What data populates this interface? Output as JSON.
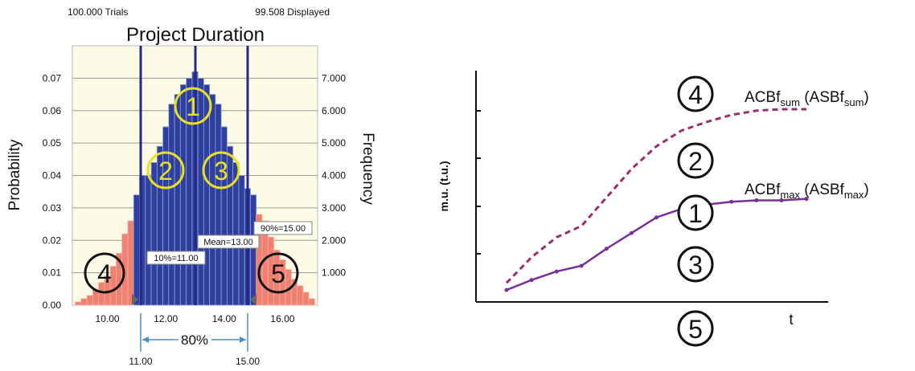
{
  "chart_data": [
    {
      "type": "bar",
      "title": "Project Duration",
      "header_left": "100.000 Trials",
      "header_right": "99.508 Displayed",
      "ylabel": "Probability",
      "ylabel_right": "Frequency",
      "ylim": [
        0,
        0.08
      ],
      "yticks": [
        "0.00",
        "0.01",
        "0.02",
        "0.03",
        "0.04",
        "0.05",
        "0.06",
        "0.07"
      ],
      "yticks_right": [
        "1.000",
        "2.000",
        "3.000",
        "4.000",
        "5.000",
        "6.000",
        "7.000"
      ],
      "xlim": [
        8.8,
        17.2
      ],
      "xticks": [
        "10.00",
        "12.00",
        "14.00",
        "16.00"
      ],
      "bin_width": 0.2,
      "bins_start": 8.9,
      "bin_centers": [
        9.0,
        9.2,
        9.4,
        9.6,
        9.8,
        10.0,
        10.2,
        10.4,
        10.6,
        10.8,
        11.0,
        11.2,
        11.4,
        11.6,
        11.8,
        12.0,
        12.2,
        12.4,
        12.6,
        12.8,
        13.0,
        13.2,
        13.4,
        13.6,
        13.8,
        14.0,
        14.2,
        14.4,
        14.6,
        14.8,
        15.0,
        15.2,
        15.4,
        15.6,
        15.8,
        16.0,
        16.2,
        16.4,
        16.6,
        16.8,
        17.0
      ],
      "values": [
        0.001,
        0.002,
        0.003,
        0.005,
        0.007,
        0.009,
        0.012,
        0.016,
        0.022,
        0.026,
        0.034,
        0.04,
        0.04,
        0.044,
        0.049,
        0.055,
        0.062,
        0.065,
        0.068,
        0.07,
        0.072,
        0.07,
        0.068,
        0.065,
        0.062,
        0.055,
        0.049,
        0.044,
        0.04,
        0.036,
        0.034,
        0.028,
        0.026,
        0.021,
        0.017,
        0.014,
        0.011,
        0.008,
        0.006,
        0.004,
        0.002
      ],
      "series_colors": {
        "center": "#2f3f9e",
        "tail": "#f08070"
      },
      "markers": [
        {
          "x": 11.0,
          "label": "10%=11.00"
        },
        {
          "x": 13.0,
          "label": "Mean=13.00"
        },
        {
          "x": 15.0,
          "label": "90%=15.00"
        }
      ],
      "certainty_range": {
        "from": "11.00",
        "to": "15.00",
        "certainty": "80%"
      },
      "region_labels": {
        "one": "1",
        "two": "2",
        "three": "3",
        "four": "4",
        "five": "5"
      }
    },
    {
      "type": "line",
      "ylabel": "m.u. (t.u.)",
      "xlabel": "t",
      "x": [
        1,
        2,
        3,
        4,
        5,
        6,
        7,
        8,
        9,
        10,
        11,
        12,
        13
      ],
      "series": [
        {
          "name": "ACBf",
          "subscript": "sum",
          "paren_name": "ASBf",
          "paren_subscript": "sum",
          "style": "dashed",
          "color": "#9c2e6e",
          "values": [
            0.1,
            0.28,
            0.42,
            0.5,
            0.7,
            0.9,
            1.06,
            1.17,
            1.23,
            1.28,
            1.31,
            1.32,
            1.32
          ]
        },
        {
          "name": "ACBf",
          "subscript": "max",
          "paren_name": "ASBf",
          "paren_subscript": "max",
          "style": "solid",
          "color": "#7a2e9e",
          "values": [
            0.05,
            0.12,
            0.18,
            0.22,
            0.34,
            0.45,
            0.56,
            0.62,
            0.65,
            0.67,
            0.68,
            0.68,
            0.69
          ]
        }
      ],
      "region_labels": {
        "one": "1",
        "two": "2",
        "three": "3",
        "four": "4",
        "five": "5"
      }
    }
  ]
}
